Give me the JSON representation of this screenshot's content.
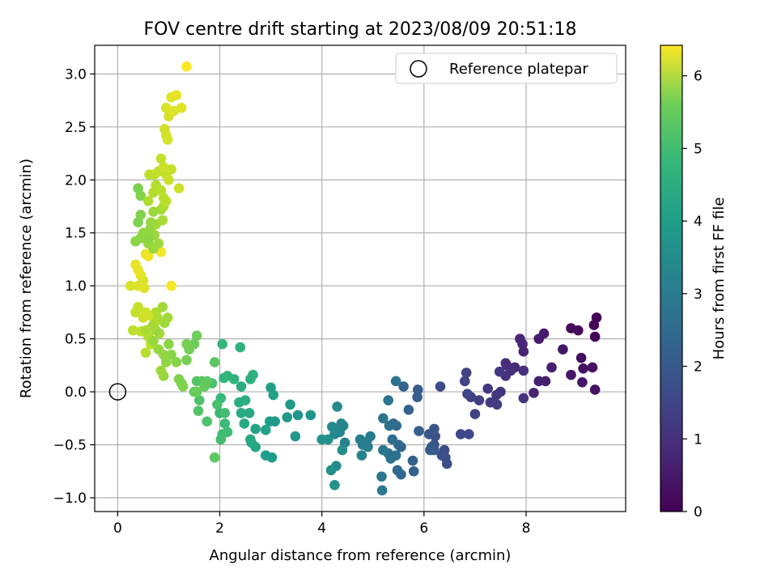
{
  "chart_data": {
    "type": "scatter",
    "title": "FOV centre drift starting at 2023/08/09 20:51:18",
    "xlabel": "Angular distance from reference (arcmin)",
    "ylabel": "Rotation from reference (arcmin)",
    "xlim": [
      -0.45,
      9.95
    ],
    "ylim": [
      -1.13,
      3.27
    ],
    "xticks": [
      0,
      2,
      4,
      6,
      8
    ],
    "xtick_labels": [
      "0",
      "2",
      "4",
      "6",
      "8"
    ],
    "yticks": [
      -1.0,
      -0.5,
      0.0,
      0.5,
      1.0,
      1.5,
      2.0,
      2.5,
      3.0
    ],
    "ytick_labels": [
      "−1.0",
      "−0.5",
      "0.0",
      "0.5",
      "1.0",
      "1.5",
      "2.0",
      "2.5",
      "3.0"
    ],
    "grid": true,
    "legend": {
      "position": "top-right",
      "entries": [
        "Reference platepar"
      ]
    },
    "reference_point": {
      "x": 0.0,
      "y": 0.0
    },
    "colorbar": {
      "label": "Hours from first FF file",
      "range": [
        0,
        6.42
      ],
      "ticks": [
        0,
        1,
        2,
        3,
        4,
        5,
        6
      ],
      "tick_labels": [
        "0",
        "1",
        "2",
        "3",
        "4",
        "5",
        "6"
      ],
      "colormap": "viridis"
    },
    "points": [
      [
        9.38,
        0.7,
        0.05
      ],
      [
        9.33,
        0.63,
        0.08
      ],
      [
        9.35,
        0.52,
        0.1
      ],
      [
        9.02,
        0.58,
        0.15
      ],
      [
        8.88,
        0.6,
        0.18
      ],
      [
        9.08,
        0.32,
        0.22
      ],
      [
        9.12,
        0.22,
        0.25
      ],
      [
        9.3,
        0.23,
        0.28
      ],
      [
        9.35,
        0.02,
        0.3
      ],
      [
        9.1,
        0.09,
        0.35
      ],
      [
        8.88,
        0.16,
        0.38
      ],
      [
        8.72,
        0.4,
        0.42
      ],
      [
        8.35,
        0.55,
        0.45
      ],
      [
        8.25,
        0.5,
        0.48
      ],
      [
        8.5,
        0.23,
        0.52
      ],
      [
        8.38,
        0.1,
        0.55
      ],
      [
        8.25,
        0.1,
        0.58
      ],
      [
        8.15,
        -0.01,
        0.62
      ],
      [
        7.95,
        0.38,
        0.65
      ],
      [
        7.88,
        0.5,
        0.68
      ],
      [
        7.93,
        0.45,
        0.72
      ],
      [
        7.78,
        0.23,
        0.75
      ],
      [
        7.62,
        0.25,
        0.78
      ],
      [
        7.6,
        0.27,
        0.82
      ],
      [
        7.7,
        0.2,
        0.85
      ],
      [
        7.95,
        0.2,
        0.88
      ],
      [
        7.95,
        -0.06,
        0.92
      ],
      [
        7.6,
        0.15,
        0.95
      ],
      [
        7.5,
        0.0,
        0.98
      ],
      [
        7.42,
        -0.03,
        1.02
      ],
      [
        7.25,
        0.03,
        1.05
      ],
      [
        7.48,
        0.19,
        1.08
      ],
      [
        7.3,
        -0.1,
        1.12
      ],
      [
        7.43,
        -0.12,
        1.15
      ],
      [
        7.08,
        -0.08,
        1.18
      ],
      [
        6.92,
        -0.05,
        1.22
      ],
      [
        7.0,
        -0.21,
        1.25
      ],
      [
        6.83,
        0.18,
        1.28
      ],
      [
        6.8,
        0.1,
        1.32
      ],
      [
        6.85,
        -0.02,
        1.35
      ],
      [
        6.72,
        -0.4,
        1.38
      ],
      [
        6.88,
        -0.4,
        1.42
      ],
      [
        6.32,
        0.05,
        1.45
      ],
      [
        6.4,
        -0.55,
        1.48
      ],
      [
        6.42,
        -0.62,
        1.52
      ],
      [
        6.45,
        -0.68,
        1.55
      ],
      [
        6.35,
        -0.6,
        1.58
      ],
      [
        6.22,
        -0.42,
        1.62
      ],
      [
        6.2,
        -0.5,
        1.65
      ],
      [
        6.2,
        -0.35,
        1.68
      ],
      [
        6.1,
        -0.4,
        1.72
      ],
      [
        6.15,
        -0.52,
        1.75
      ],
      [
        6.12,
        -0.55,
        1.78
      ],
      [
        6.2,
        -0.55,
        1.82
      ],
      [
        5.88,
        0.02,
        1.85
      ],
      [
        5.87,
        -0.05,
        1.88
      ],
      [
        5.9,
        -0.37,
        1.92
      ],
      [
        5.78,
        -0.65,
        1.95
      ],
      [
        5.8,
        -0.75,
        1.98
      ],
      [
        5.7,
        -0.17,
        2.02
      ],
      [
        5.6,
        0.05,
        2.05
      ],
      [
        5.55,
        -0.52,
        2.08
      ],
      [
        5.5,
        -0.5,
        2.12
      ],
      [
        5.48,
        -0.74,
        2.15
      ],
      [
        5.55,
        -0.78,
        2.18
      ],
      [
        5.46,
        -0.32,
        2.22
      ],
      [
        5.4,
        -0.3,
        2.25
      ],
      [
        5.38,
        -0.45,
        2.28
      ],
      [
        5.32,
        -0.32,
        2.32
      ],
      [
        5.3,
        -0.58,
        2.35
      ],
      [
        5.35,
        -0.63,
        2.38
      ],
      [
        5.45,
        -0.6,
        2.42
      ],
      [
        5.45,
        0.1,
        2.45
      ],
      [
        5.3,
        -0.08,
        2.48
      ],
      [
        5.2,
        -0.25,
        2.52
      ],
      [
        5.2,
        -0.55,
        2.55
      ],
      [
        5.17,
        -0.8,
        2.58
      ],
      [
        5.18,
        -0.93,
        2.62
      ],
      [
        4.95,
        -0.42,
        2.65
      ],
      [
        4.88,
        -0.47,
        2.68
      ],
      [
        4.9,
        -0.52,
        2.72
      ],
      [
        4.8,
        -0.5,
        2.75
      ],
      [
        4.75,
        -0.45,
        2.78
      ],
      [
        4.78,
        -0.6,
        2.82
      ],
      [
        4.45,
        -0.48,
        2.85
      ],
      [
        4.38,
        -0.3,
        2.88
      ],
      [
        4.42,
        -0.32,
        2.92
      ],
      [
        4.35,
        -0.38,
        2.95
      ],
      [
        4.3,
        -0.35,
        2.98
      ],
      [
        4.25,
        -0.4,
        3.02
      ],
      [
        4.2,
        -0.33,
        3.05
      ],
      [
        4.28,
        -0.7,
        3.08
      ],
      [
        4.3,
        -0.14,
        3.12
      ],
      [
        4.4,
        -0.55,
        3.15
      ],
      [
        4.18,
        -0.74,
        3.18
      ],
      [
        4.12,
        -0.45,
        3.22
      ],
      [
        4.0,
        -0.45,
        3.25
      ],
      [
        4.25,
        -0.88,
        3.28
      ],
      [
        3.78,
        -0.22,
        3.32
      ],
      [
        3.53,
        -0.22,
        3.35
      ],
      [
        3.48,
        -0.42,
        3.38
      ],
      [
        3.32,
        -0.24,
        3.42
      ],
      [
        3.38,
        -0.12,
        3.45
      ],
      [
        3.08,
        -0.28,
        3.48
      ],
      [
        2.98,
        -0.28,
        3.52
      ],
      [
        3.02,
        -0.62,
        3.55
      ],
      [
        2.9,
        -0.6,
        3.58
      ],
      [
        3.0,
        0.04,
        3.62
      ],
      [
        3.05,
        -0.03,
        3.65
      ],
      [
        2.9,
        -0.36,
        3.68
      ],
      [
        2.7,
        -0.35,
        3.72
      ],
      [
        2.7,
        -0.52,
        3.75
      ],
      [
        2.6,
        -0.45,
        3.78
      ],
      [
        2.62,
        -0.48,
        3.82
      ],
      [
        2.58,
        -0.2,
        3.85
      ],
      [
        2.48,
        -0.3,
        3.88
      ],
      [
        2.42,
        -0.2,
        3.92
      ],
      [
        2.38,
        -0.1,
        3.95
      ],
      [
        2.42,
        0.05,
        3.98
      ],
      [
        2.5,
        -0.08,
        4.02
      ],
      [
        2.6,
        0.12,
        4.05
      ],
      [
        2.65,
        0.16,
        4.08
      ],
      [
        2.4,
        0.42,
        4.12
      ],
      [
        2.28,
        0.12,
        4.15
      ],
      [
        2.15,
        0.15,
        4.18
      ],
      [
        2.08,
        0.13,
        4.22
      ],
      [
        2.05,
        0.45,
        4.25
      ],
      [
        2.02,
        -0.06,
        4.28
      ],
      [
        2.0,
        -0.2,
        4.32
      ],
      [
        2.1,
        -0.3,
        4.35
      ],
      [
        2.15,
        -0.38,
        4.38
      ],
      [
        2.05,
        -0.4,
        4.42
      ],
      [
        2.02,
        -0.45,
        4.45
      ],
      [
        2.1,
        -0.2,
        4.48
      ],
      [
        1.95,
        -0.12,
        4.52
      ],
      [
        1.85,
        0.08,
        4.55
      ],
      [
        1.75,
        -0.28,
        4.58
      ],
      [
        1.6,
        -0.08,
        4.62
      ],
      [
        1.58,
        -0.18,
        4.65
      ],
      [
        1.55,
        0.1,
        4.68
      ],
      [
        1.65,
        0.1,
        4.72
      ],
      [
        1.9,
        0.28,
        4.75
      ],
      [
        1.9,
        -0.62,
        4.78
      ],
      [
        1.75,
        0.1,
        4.82
      ],
      [
        1.7,
        0.05,
        4.85
      ],
      [
        1.5,
        0.0,
        4.88
      ],
      [
        1.55,
        0.0,
        4.92
      ],
      [
        1.5,
        0.45,
        4.95
      ],
      [
        1.55,
        0.53,
        4.98
      ],
      [
        1.4,
        0.4,
        5.02
      ],
      [
        1.35,
        0.3,
        5.05
      ],
      [
        1.35,
        0.45,
        5.08
      ],
      [
        1.25,
        0.08,
        5.12
      ],
      [
        1.2,
        0.12,
        5.15
      ],
      [
        1.28,
        0.05,
        5.18
      ],
      [
        1.15,
        0.28,
        5.22
      ],
      [
        1.05,
        0.35,
        5.25
      ],
      [
        1.0,
        0.45,
        5.28
      ],
      [
        0.95,
        0.28,
        5.32
      ],
      [
        0.9,
        0.35,
        5.35
      ],
      [
        0.8,
        0.4,
        5.38
      ],
      [
        0.9,
        0.15,
        5.42
      ],
      [
        0.85,
        0.2,
        5.45
      ],
      [
        0.92,
        0.65,
        5.48
      ],
      [
        0.98,
        0.7,
        5.52
      ],
      [
        0.82,
        0.55,
        5.55
      ],
      [
        0.78,
        0.7,
        5.58
      ],
      [
        0.75,
        0.75,
        5.62
      ],
      [
        0.72,
        0.65,
        5.65
      ],
      [
        0.6,
        0.52,
        5.68
      ],
      [
        0.55,
        0.37,
        5.72
      ],
      [
        0.65,
        0.45,
        5.75
      ],
      [
        0.45,
        0.57,
        5.78
      ],
      [
        0.3,
        0.58,
        5.82
      ],
      [
        0.35,
        0.75,
        5.85
      ],
      [
        0.4,
        0.8,
        5.88
      ],
      [
        0.55,
        0.75,
        5.92
      ],
      [
        0.5,
        0.7,
        5.95
      ],
      [
        0.6,
        0.72,
        5.98
      ],
      [
        0.25,
        1.0,
        6.02
      ],
      [
        0.4,
        1.0,
        6.05
      ],
      [
        0.5,
        1.05,
        6.08
      ],
      [
        0.52,
        0.98,
        6.12
      ],
      [
        0.45,
        1.1,
        6.15
      ],
      [
        0.35,
        1.2,
        6.18
      ],
      [
        0.4,
        1.15,
        6.22
      ],
      [
        0.55,
        1.3,
        6.25
      ],
      [
        0.6,
        1.28,
        6.28
      ],
      [
        0.85,
        1.32,
        6.32
      ],
      [
        1.05,
        1.0,
        6.35
      ],
      [
        0.7,
        0.48,
        5.4
      ],
      [
        0.75,
        0.58,
        5.45
      ],
      [
        0.88,
        0.8,
        5.5
      ],
      [
        0.68,
        0.62,
        5.55
      ],
      [
        0.55,
        0.58,
        5.6
      ],
      [
        0.35,
        1.42,
        5.25
      ],
      [
        0.45,
        1.45,
        5.3
      ],
      [
        0.55,
        1.5,
        5.33
      ],
      [
        0.65,
        1.55,
        5.36
      ],
      [
        0.6,
        1.4,
        5.4
      ],
      [
        0.7,
        1.35,
        5.43
      ],
      [
        0.72,
        1.48,
        5.46
      ],
      [
        0.8,
        1.4,
        5.49
      ],
      [
        0.75,
        1.58,
        5.52
      ],
      [
        0.4,
        1.6,
        5.15
      ],
      [
        0.45,
        1.67,
        5.18
      ],
      [
        0.85,
        1.72,
        5.55
      ],
      [
        0.88,
        1.62,
        5.58
      ],
      [
        0.9,
        1.75,
        5.62
      ],
      [
        0.45,
        1.85,
        5.2
      ],
      [
        0.6,
        1.8,
        5.65
      ],
      [
        0.7,
        1.88,
        5.68
      ],
      [
        0.75,
        1.95,
        5.7
      ],
      [
        0.85,
        1.9,
        5.72
      ],
      [
        0.9,
        1.83,
        5.74
      ],
      [
        0.95,
        1.8,
        5.76
      ],
      [
        0.4,
        1.92,
        5.1
      ],
      [
        0.62,
        2.05,
        5.78
      ],
      [
        0.72,
        2.05,
        5.8
      ],
      [
        0.8,
        2.08,
        5.82
      ],
      [
        0.85,
        2.2,
        5.84
      ],
      [
        0.95,
        2.05,
        5.86
      ],
      [
        1.05,
        2.1,
        5.88
      ],
      [
        1.0,
        2.0,
        5.9
      ],
      [
        0.9,
        2.12,
        5.92
      ],
      [
        1.2,
        1.92,
        5.94
      ],
      [
        0.95,
        2.42,
        5.96
      ],
      [
        0.92,
        2.48,
        5.98
      ],
      [
        0.98,
        2.38,
        6.0
      ],
      [
        1.0,
        2.6,
        6.02
      ],
      [
        0.95,
        2.68,
        6.05
      ],
      [
        1.1,
        2.65,
        6.1
      ],
      [
        1.25,
        2.68,
        6.12
      ],
      [
        1.05,
        2.78,
        6.15
      ],
      [
        1.15,
        2.8,
        6.2
      ],
      [
        1.35,
        3.07,
        6.4
      ],
      [
        0.7,
        1.7,
        5.45
      ],
      [
        0.65,
        1.6,
        5.4
      ],
      [
        0.5,
        1.5,
        5.35
      ],
      [
        0.62,
        1.45,
        5.32
      ]
    ]
  }
}
